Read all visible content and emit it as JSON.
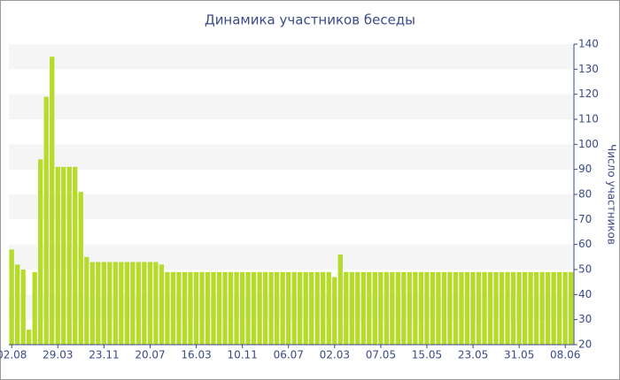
{
  "chart_data": {
    "type": "bar",
    "title": "Динамика участников беседы",
    "y_label": "Число участников",
    "categories": [
      "02.08",
      null,
      null,
      null,
      null,
      null,
      null,
      null,
      "29.03",
      null,
      null,
      null,
      null,
      null,
      null,
      null,
      "23.11",
      null,
      null,
      null,
      null,
      null,
      null,
      null,
      "20.07",
      null,
      null,
      null,
      null,
      null,
      null,
      null,
      "16.03",
      null,
      null,
      null,
      null,
      null,
      null,
      null,
      "10.11",
      null,
      null,
      null,
      null,
      null,
      null,
      null,
      "06.07",
      null,
      null,
      null,
      null,
      null,
      null,
      null,
      "02.03",
      null,
      null,
      null,
      null,
      null,
      null,
      null,
      "07.05",
      null,
      null,
      null,
      null,
      null,
      null,
      null,
      "15.05",
      null,
      null,
      null,
      null,
      null,
      null,
      null,
      "23.05",
      null,
      null,
      null,
      null,
      null,
      null,
      null,
      "31.05",
      null,
      null,
      null,
      null,
      null,
      null,
      null,
      "08.06",
      null
    ],
    "values": [
      58,
      52,
      50,
      26,
      49,
      94,
      119,
      135,
      91,
      91,
      91,
      91,
      81,
      55,
      53,
      53,
      53,
      53,
      53,
      53,
      53,
      53,
      53,
      53,
      53,
      53,
      52,
      49,
      49,
      49,
      49,
      49,
      49,
      49,
      49,
      49,
      49,
      49,
      49,
      49,
      49,
      49,
      49,
      49,
      49,
      49,
      49,
      49,
      49,
      49,
      49,
      49,
      49,
      49,
      49,
      49,
      47,
      56,
      49,
      49,
      49,
      49,
      49,
      49,
      49,
      49,
      49,
      49,
      49,
      49,
      49,
      49,
      49,
      49,
      49,
      49,
      49,
      49,
      49,
      49,
      49,
      49,
      49,
      49,
      49,
      49,
      49,
      49,
      49,
      49,
      49,
      49,
      49,
      49,
      49,
      49,
      49,
      49
    ],
    "color": "#b5dc2b",
    "ylim": [
      20,
      140
    ],
    "yticks": [
      20,
      30,
      40,
      50,
      60,
      70,
      80,
      90,
      100,
      110,
      120,
      130,
      140
    ],
    "y_axis_side": "right",
    "grid": "bands"
  }
}
